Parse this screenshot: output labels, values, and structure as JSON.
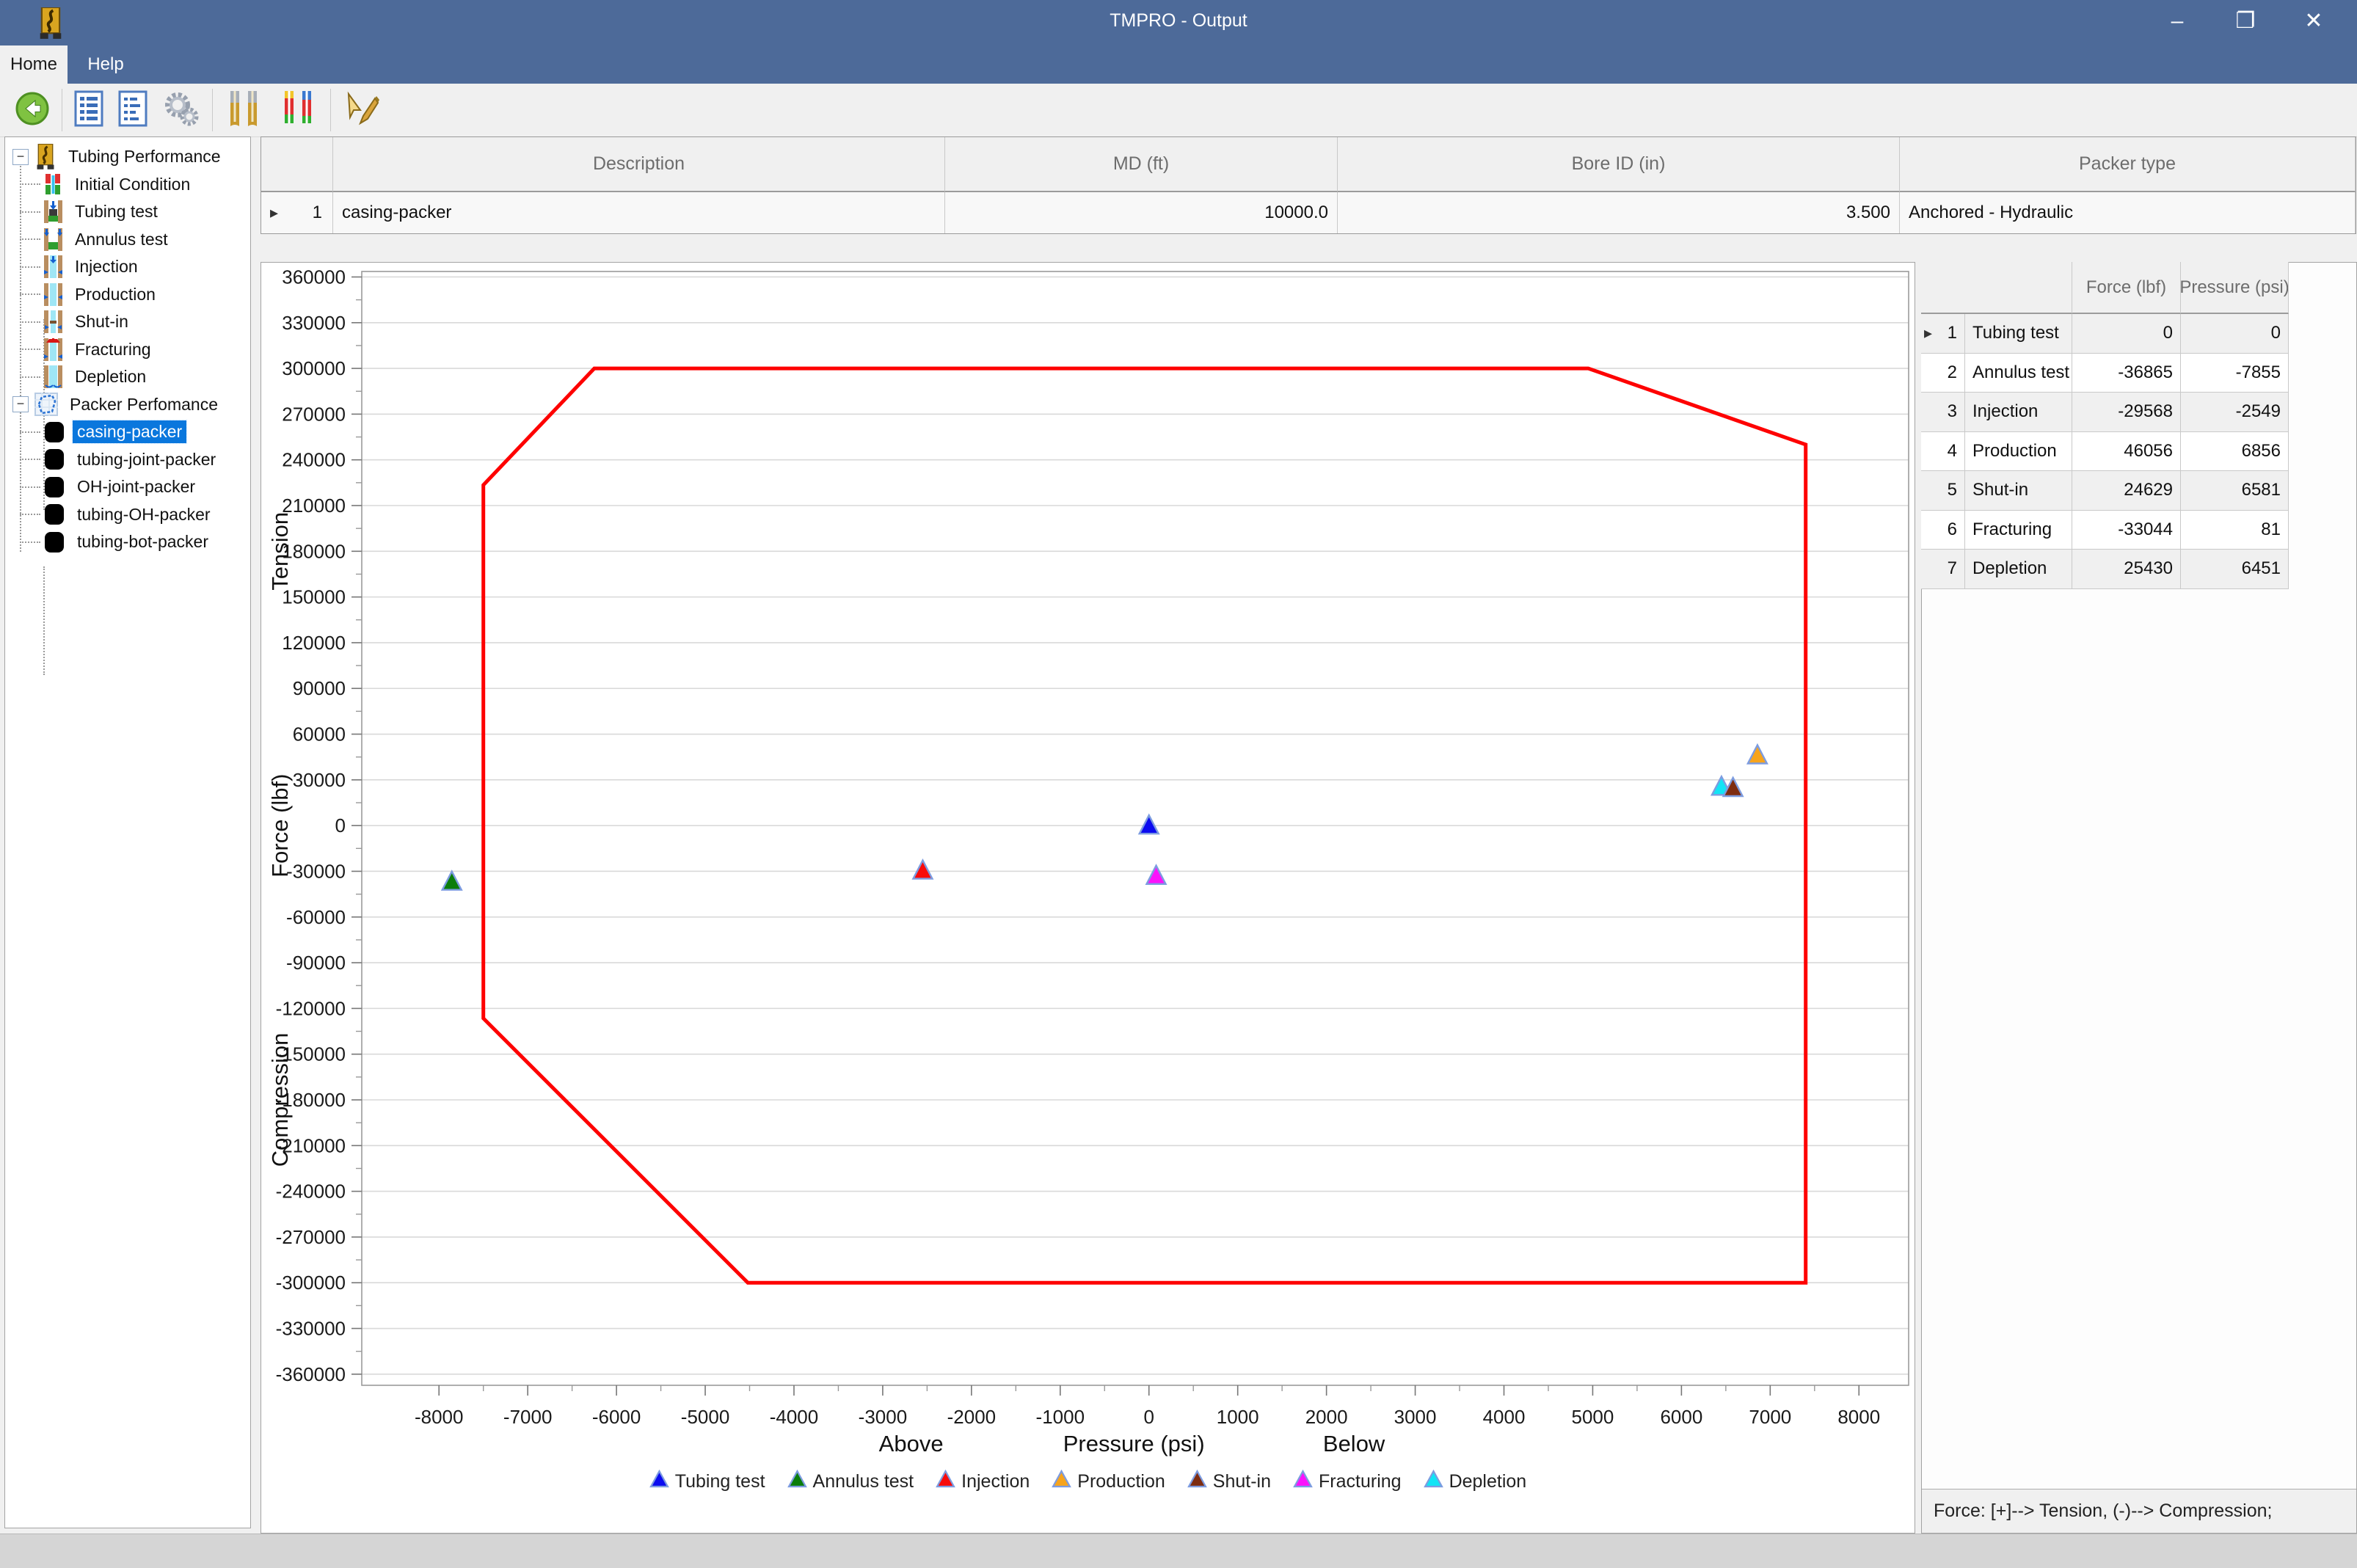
{
  "window": {
    "title": "TMPRO - Output",
    "controls": [
      {
        "name": "minimize",
        "glyph": "–"
      },
      {
        "name": "restore",
        "glyph": "❐"
      },
      {
        "name": "close",
        "glyph": "✕"
      }
    ]
  },
  "ribbon": {
    "tabs": [
      {
        "label": "Home",
        "active": true
      },
      {
        "label": "Help",
        "active": false
      }
    ],
    "toolbar": [
      {
        "icon": "back-icon"
      },
      {
        "separator": true
      },
      {
        "icon": "report-icon"
      },
      {
        "icon": "report-summary-icon"
      },
      {
        "icon": "settings-gears-icon"
      },
      {
        "separator": true
      },
      {
        "icon": "tubing-tools-icon"
      },
      {
        "icon": "tubing-loads-icon"
      },
      {
        "separator": true
      },
      {
        "icon": "run-edit-icon"
      }
    ]
  },
  "tree": {
    "items": [
      {
        "label": "Tubing Performance",
        "level": 0,
        "icon": "tubing-performance-icon",
        "expanded": true
      },
      {
        "label": "Initial Condition",
        "level": 1,
        "icon": "initial-condition-icon"
      },
      {
        "label": "Tubing test",
        "level": 1,
        "icon": "tubing-test-icon"
      },
      {
        "label": "Annulus test",
        "level": 1,
        "icon": "annulus-test-icon"
      },
      {
        "label": "Injection",
        "level": 1,
        "icon": "injection-icon"
      },
      {
        "label": "Production",
        "level": 1,
        "icon": "production-icon"
      },
      {
        "label": "Shut-in",
        "level": 1,
        "icon": "shut-in-icon"
      },
      {
        "label": "Fracturing",
        "level": 1,
        "icon": "fracturing-icon"
      },
      {
        "label": "Depletion",
        "level": 1,
        "icon": "depletion-icon"
      },
      {
        "label": "Packer Perfomance",
        "level": 0,
        "icon": "packer-performance-icon",
        "expanded": true
      },
      {
        "label": "casing-packer",
        "level": 1,
        "icon": "packer-icon",
        "selected": true
      },
      {
        "label": "tubing-joint-packer",
        "level": 1,
        "icon": "packer-icon"
      },
      {
        "label": "OH-joint-packer",
        "level": 1,
        "icon": "packer-icon"
      },
      {
        "label": "tubing-OH-packer",
        "level": 1,
        "icon": "packer-icon"
      },
      {
        "label": "tubing-bot-packer",
        "level": 1,
        "icon": "packer-icon"
      }
    ]
  },
  "packer_table": {
    "headers": [
      "Description",
      "MD (ft)",
      "Bore ID (in)",
      "Packer type"
    ],
    "row_marker": "▸",
    "rows": [
      {
        "num": "1",
        "description": "casing-packer",
        "md_ft": "10000.0",
        "bore_id_in": "3.500",
        "packer_type": "Anchored - Hydraulic"
      }
    ]
  },
  "results_table": {
    "headers": [
      "Force (lbf)",
      "Pressure (psi)"
    ],
    "row_marker": "▸",
    "rows": [
      {
        "num": "1",
        "name": "Tubing test",
        "force": "0",
        "pressure": "0"
      },
      {
        "num": "2",
        "name": "Annulus test",
        "force": "-36865",
        "pressure": "-7855"
      },
      {
        "num": "3",
        "name": "Injection",
        "force": "-29568",
        "pressure": "-2549"
      },
      {
        "num": "4",
        "name": "Production",
        "force": "46056",
        "pressure": "6856"
      },
      {
        "num": "5",
        "name": "Shut-in",
        "force": "24629",
        "pressure": "6581"
      },
      {
        "num": "6",
        "name": "Fracturing",
        "force": "-33044",
        "pressure": "81"
      },
      {
        "num": "7",
        "name": "Depletion",
        "force": "25430",
        "pressure": "6451"
      }
    ]
  },
  "status_note": "Force: [+]--> Tension, (-)--> Compression;",
  "colors": {
    "titlebar": "#4d6a99",
    "selection": "#0a77dd",
    "envelope": "#fe0000",
    "grid": "#d9d9d9",
    "plot_border": "#9b9b9b",
    "marker_outline": "#7d9ce0"
  },
  "chart_data": {
    "type": "scatter",
    "title": "",
    "x_axis": {
      "label_left": "Above",
      "label_center": "Pressure (psi)",
      "label_right": "Below",
      "min": -8870,
      "max": 8560,
      "tick_start": -8000,
      "tick_end": 8000,
      "tick_step": 1000,
      "minor_step": 500,
      "label_left_at": -2680,
      "label_center_at": -170,
      "label_right_at": 2310
    },
    "y_axis": {
      "label_top": "Tension",
      "label_center": "Force (lbf)",
      "label_bottom": "Compression",
      "min": -367300,
      "max": 363600,
      "tick_start": -360000,
      "tick_end": 360000,
      "tick_step": 30000,
      "minor_step": 15000,
      "label_top_at": 180000,
      "label_center_at": 0,
      "label_bottom_at": -180000
    },
    "grid": "horizontal-only",
    "legend_position": "bottom-center",
    "marker": "triangle-up",
    "envelope": {
      "name": "packer-operating-envelope",
      "color": "#fe0000",
      "vertices": [
        [
          -6250,
          300000
        ],
        [
          4950,
          300000
        ],
        [
          7400,
          250000
        ],
        [
          7400,
          -300000
        ],
        [
          -4520,
          -300000
        ],
        [
          -7500,
          -126500
        ],
        [
          -7500,
          223500
        ]
      ]
    },
    "series": [
      {
        "name": "Tubing test",
        "color": "#0b0bf0",
        "pressure_psi": 0,
        "force_lbf": 0
      },
      {
        "name": "Annulus test",
        "color": "#0b7d0b",
        "pressure_psi": -7855,
        "force_lbf": -36865
      },
      {
        "name": "Injection",
        "color": "#f80b0b",
        "pressure_psi": -2549,
        "force_lbf": -29568
      },
      {
        "name": "Production",
        "color": "#f7a41c",
        "pressure_psi": 6856,
        "force_lbf": 46056
      },
      {
        "name": "Shut-in",
        "color": "#7e2c10",
        "pressure_psi": 6581,
        "force_lbf": 24629
      },
      {
        "name": "Fracturing",
        "color": "#fb12fb",
        "pressure_psi": 81,
        "force_lbf": -33044
      },
      {
        "name": "Depletion",
        "color": "#12e4f5",
        "pressure_psi": 6451,
        "force_lbf": 25430
      }
    ]
  }
}
